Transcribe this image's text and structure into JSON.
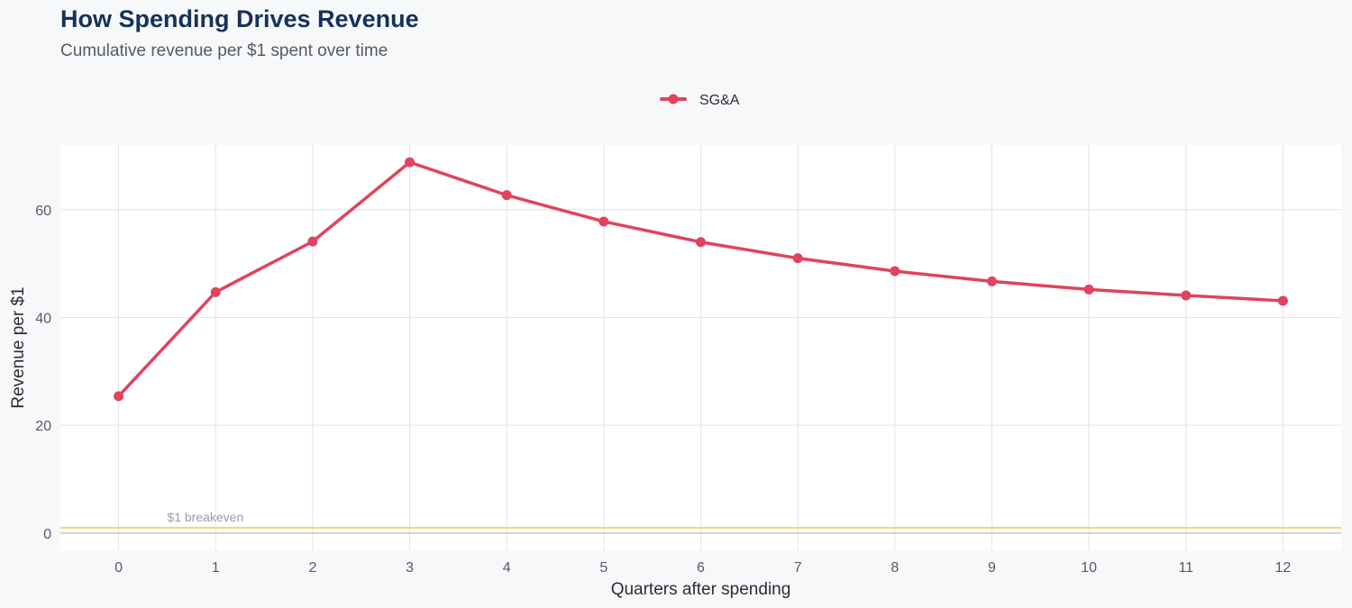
{
  "title": "How Spending Drives Revenue",
  "subtitle": "Cumulative revenue per $1 spent over time",
  "colors": {
    "series": "#e0435d",
    "breakeven": "#f6d27a",
    "grid": "#e3e4e6",
    "zero_line": "#c9cacc",
    "panel": "#ffffff",
    "background": "#f7f8fa"
  },
  "chart_data": {
    "type": "line",
    "xlabel": "Quarters after spending",
    "ylabel": "Revenue per $1",
    "x": [
      0,
      1,
      2,
      3,
      4,
      5,
      6,
      7,
      8,
      9,
      10,
      11,
      12
    ],
    "xticks": [
      "0",
      "1",
      "2",
      "3",
      "4",
      "5",
      "6",
      "7",
      "8",
      "9",
      "10",
      "11",
      "12"
    ],
    "yticks": [
      "0",
      "20",
      "40",
      "60"
    ],
    "ytick_values": [
      0,
      20,
      40,
      60
    ],
    "xlim": [
      -0.6,
      12.6
    ],
    "ylim": [
      -3.2,
      72
    ],
    "series": [
      {
        "name": "SG&A",
        "values": [
          25.4,
          44.7,
          54.1,
          68.8,
          62.7,
          57.8,
          54.0,
          51.0,
          48.6,
          46.7,
          45.2,
          44.1,
          43.1
        ]
      }
    ],
    "reference_line": {
      "y": 1,
      "label": "$1 breakeven"
    },
    "legend": {
      "position": "top"
    },
    "grid": true
  }
}
